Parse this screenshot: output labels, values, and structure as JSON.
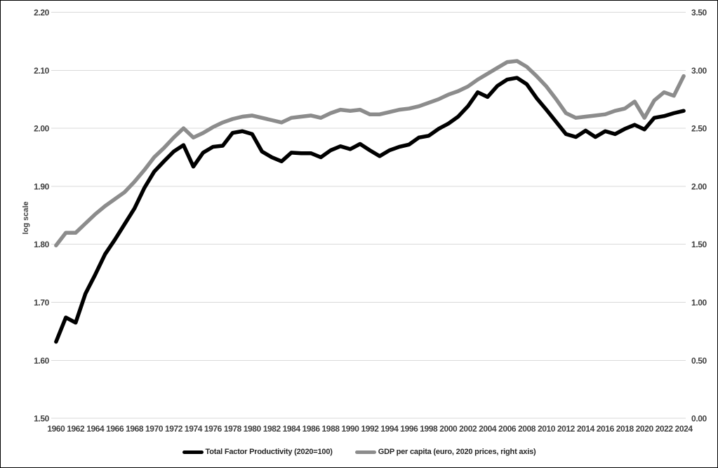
{
  "figure": {
    "background_color": "#ffffff",
    "border_color": "#000000",
    "grid_color": "#d9d9d9",
    "tick_label_color": "#404040"
  },
  "chart_data": {
    "type": "line",
    "title": "",
    "grid": "horizontal",
    "legend_position": "bottom",
    "x_label": "",
    "x_tick_labels": [
      "1960",
      "1962",
      "1964",
      "1966",
      "1968",
      "1970",
      "1972",
      "1974",
      "1976",
      "1978",
      "1980",
      "1982",
      "1984",
      "1986",
      "1988",
      "1990",
      "1992",
      "1994",
      "1996",
      "1998",
      "2000",
      "2002",
      "2004",
      "2006",
      "2008",
      "2010",
      "2012",
      "2014",
      "2016",
      "2018",
      "2020",
      "2022",
      "2024"
    ],
    "x": [
      1960,
      1961,
      1962,
      1963,
      1964,
      1965,
      1966,
      1967,
      1968,
      1969,
      1970,
      1971,
      1972,
      1973,
      1974,
      1975,
      1976,
      1977,
      1978,
      1979,
      1980,
      1981,
      1982,
      1983,
      1984,
      1985,
      1986,
      1987,
      1988,
      1989,
      1990,
      1991,
      1992,
      1993,
      1994,
      1995,
      1996,
      1997,
      1998,
      1999,
      2000,
      2001,
      2002,
      2003,
      2004,
      2005,
      2006,
      2007,
      2008,
      2009,
      2010,
      2011,
      2012,
      2013,
      2014,
      2015,
      2016,
      2017,
      2018,
      2019,
      2020,
      2021,
      2022,
      2023,
      2024
    ],
    "left_axis": {
      "label": "log scale",
      "min": 1.5,
      "max": 2.2,
      "tick_step": 0.1,
      "tick_labels": [
        "2.20",
        "2.10",
        "2.00",
        "1.90",
        "1.80",
        "1.70",
        "1.60",
        "1.50"
      ]
    },
    "right_axis": {
      "label": "",
      "min": 0.0,
      "max": 3.5,
      "tick_step": 0.5,
      "tick_labels": [
        "3.50",
        "3.00",
        "2.50",
        "2.00",
        "1.50",
        "1.00",
        "0.50",
        "0.00"
      ]
    },
    "series": [
      {
        "name": "Total Factor Productivity (2020=100)",
        "axis": "left",
        "color": "#000000",
        "values": [
          1.632,
          1.674,
          1.665,
          1.715,
          1.748,
          1.783,
          1.808,
          1.835,
          1.862,
          1.897,
          1.925,
          1.943,
          1.96,
          1.971,
          1.934,
          1.958,
          1.968,
          1.97,
          1.992,
          1.995,
          1.99,
          1.96,
          1.95,
          1.943,
          1.958,
          1.957,
          1.957,
          1.95,
          1.962,
          1.969,
          1.964,
          1.973,
          1.962,
          1.952,
          1.962,
          1.968,
          1.972,
          1.984,
          1.987,
          1.999,
          2.008,
          2.02,
          2.038,
          2.062,
          2.054,
          2.073,
          2.084,
          2.087,
          2.076,
          2.052,
          2.032,
          2.011,
          1.99,
          1.985,
          1.996,
          1.985,
          1.995,
          1.99,
          1.999,
          2.006,
          1.998,
          2.018,
          2.021,
          2.026,
          2.03
        ]
      },
      {
        "name": "GDP per capita (euro, 2020 prices, right axis)",
        "axis": "right",
        "color": "#8c8c8c",
        "values": [
          1.49,
          1.6,
          1.6,
          1.68,
          1.76,
          1.83,
          1.89,
          1.95,
          2.04,
          2.14,
          2.25,
          2.33,
          2.42,
          2.5,
          2.42,
          2.46,
          2.51,
          2.55,
          2.58,
          2.6,
          2.61,
          2.59,
          2.57,
          2.55,
          2.59,
          2.6,
          2.61,
          2.59,
          2.63,
          2.66,
          2.65,
          2.66,
          2.62,
          2.62,
          2.64,
          2.66,
          2.67,
          2.69,
          2.72,
          2.75,
          2.79,
          2.82,
          2.86,
          2.92,
          2.97,
          3.02,
          3.07,
          3.08,
          3.03,
          2.95,
          2.86,
          2.75,
          2.63,
          2.59,
          2.6,
          2.61,
          2.62,
          2.65,
          2.67,
          2.73,
          2.59,
          2.74,
          2.81,
          2.78,
          2.95
        ]
      }
    ]
  }
}
